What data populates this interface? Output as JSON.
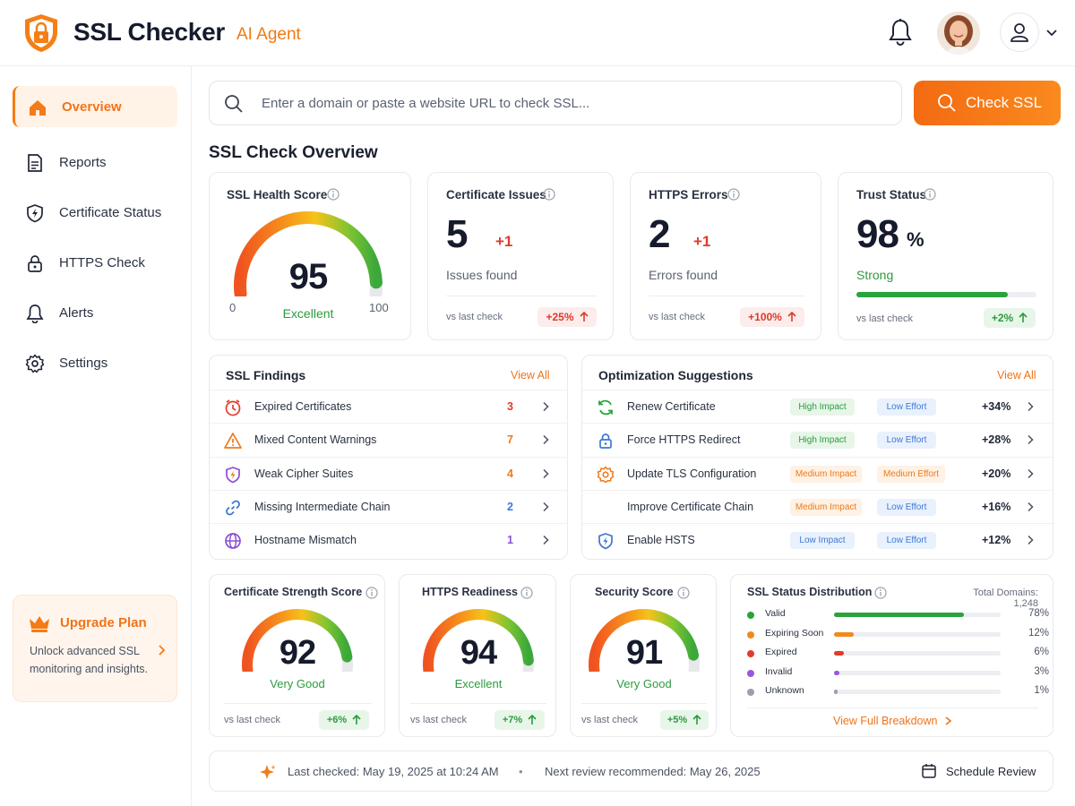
{
  "header": {
    "brand": "SSL Checker",
    "brand_sub": "AI Agent"
  },
  "sidebar": {
    "items": [
      {
        "label": "Overview",
        "icon": "home-icon",
        "active": true
      },
      {
        "label": "Reports",
        "icon": "document-icon"
      },
      {
        "label": "Certificate Status",
        "icon": "shield-icon"
      },
      {
        "label": "HTTPS Check",
        "icon": "lock-icon"
      },
      {
        "label": "Alerts",
        "icon": "bell-icon"
      },
      {
        "label": "Settings",
        "icon": "gear-icon"
      }
    ],
    "upgrade": {
      "title": "Upgrade Plan",
      "desc": "Unlock advanced SSL monitoring and insights."
    }
  },
  "search": {
    "placeholder": "Enter a domain or paste a website URL to check SSL...",
    "button": "Check SSL"
  },
  "overview": {
    "title": "SSL Check Overview",
    "health": {
      "title": "SSL Health Score",
      "score": "95",
      "label": "Excellent",
      "min": "0",
      "max": "100",
      "value": 95
    },
    "issues": {
      "title": "Certificate Issues",
      "count": "5",
      "delta": "+1",
      "sub": "Issues found",
      "vs": "vs last check",
      "change": "+25%"
    },
    "https": {
      "title": "HTTPS Errors",
      "count": "2",
      "delta": "+1",
      "sub": "Errors found",
      "vs": "vs last check",
      "change": "+100%"
    },
    "trust": {
      "title": "Trust Status",
      "value": "98",
      "unit": "%",
      "label": "Strong",
      "vs": "vs last check",
      "change": "+2%",
      "level": 0.98
    }
  },
  "findings": {
    "title": "SSL Findings",
    "view_all": "View All",
    "items": [
      {
        "label": "Expired Certificates",
        "count": "3",
        "icon": "clock-alert-icon",
        "color": "#e23b2b"
      },
      {
        "label": "Mixed Content Warnings",
        "count": "7",
        "icon": "warning-icon",
        "color": "#ee7a1a"
      },
      {
        "label": "Weak Cipher Suites",
        "count": "4",
        "icon": "shield-bolt-icon",
        "color": "#ee7a1a"
      },
      {
        "label": "Missing Intermediate Chain",
        "count": "2",
        "icon": "link-icon",
        "color": "#3d78d6"
      },
      {
        "label": "Hostname Mismatch",
        "count": "1",
        "icon": "globe-icon",
        "color": "#8a4fd6"
      }
    ]
  },
  "suggestions": {
    "title": "Optimization Suggestions",
    "view_all": "View All",
    "items": [
      {
        "label": "Renew Certificate",
        "impact": "High Impact",
        "effort": "Low Effort",
        "pct": "+34%",
        "icon": "refresh-icon"
      },
      {
        "label": "Force HTTPS Redirect",
        "impact": "High Impact",
        "effort": "Low Effort",
        "pct": "+28%",
        "icon": "lock-icon"
      },
      {
        "label": "Update TLS Configuration",
        "impact": "Medium Impact",
        "effort": "Medium Effort",
        "pct": "+20%",
        "icon": "gear-icon"
      },
      {
        "label": "Improve Certificate Chain",
        "impact": "Medium Impact",
        "effort": "Low Effort",
        "pct": "+16%",
        "icon": "link-icon"
      },
      {
        "label": "Enable HSTS",
        "impact": "Low Impact",
        "effort": "Low Effort",
        "pct": "+12%",
        "icon": "shield-check-icon"
      }
    ]
  },
  "scores": [
    {
      "title": "Certificate Strength Score",
      "score": "92",
      "label": "Very Good",
      "vs": "vs last check",
      "change": "+6%",
      "value": 92
    },
    {
      "title": "HTTPS Readiness",
      "score": "94",
      "label": "Excellent",
      "vs": "vs last check",
      "change": "+7%",
      "value": 94
    },
    {
      "title": "Security Score",
      "score": "91",
      "label": "Very Good",
      "vs": "vs last check",
      "change": "+5%",
      "value": 91
    }
  ],
  "distribution": {
    "title": "SSL Status Distribution",
    "total": "Total Domains: 1,248",
    "link": "View Full Breakdown",
    "items": [
      {
        "label": "Valid",
        "pct": "78%",
        "value": 78,
        "color": "#2aa33d"
      },
      {
        "label": "Expiring Soon",
        "pct": "12%",
        "value": 12,
        "color": "#f08a1c"
      },
      {
        "label": "Expired",
        "pct": "6%",
        "value": 6,
        "color": "#e23b2b"
      },
      {
        "label": "Invalid",
        "pct": "3%",
        "value": 3,
        "color": "#9a55e0"
      },
      {
        "label": "Unknown",
        "pct": "1%",
        "value": 1,
        "color": "#9aa0ab"
      }
    ]
  },
  "footer": {
    "last_checked": "Last checked: May 19, 2025 at 10:24 AM",
    "separator": "•",
    "next_review": "Next review recommended: May 26, 2025",
    "schedule": "Schedule Review"
  }
}
